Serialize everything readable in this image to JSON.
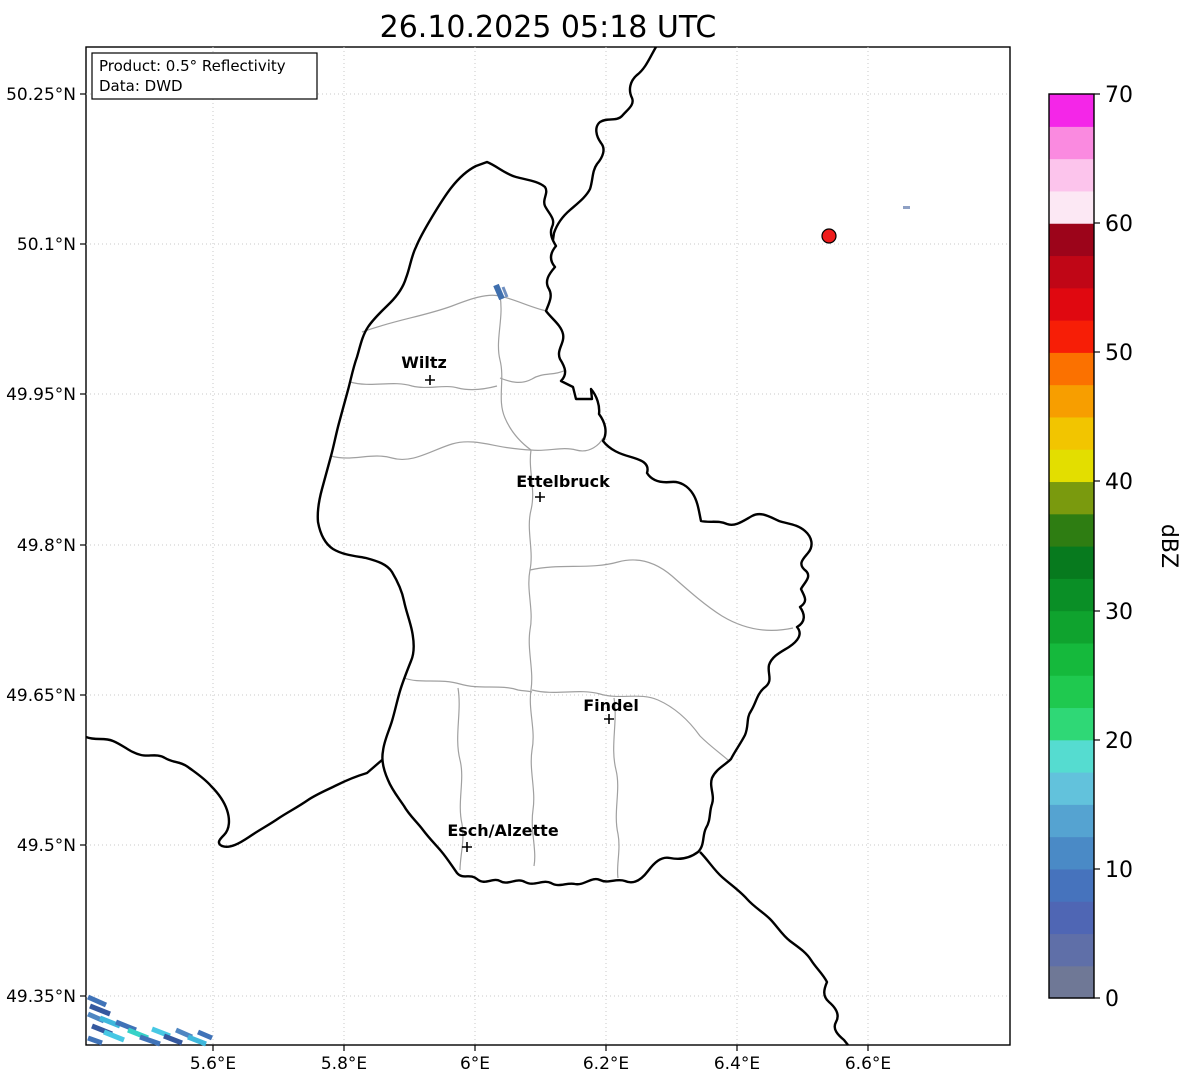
{
  "title": "26.10.2025 05:18 UTC",
  "info_box": {
    "product": "Product: 0.5° Reflectivity",
    "data_source": "Data: DWD"
  },
  "axes": {
    "x_ticks": [
      "5.6°E",
      "5.8°E",
      "6°E",
      "6.2°E",
      "6.4°E",
      "6.6°E"
    ],
    "y_ticks": [
      "50.25°N",
      "50.1°N",
      "49.95°N",
      "49.8°N",
      "49.65°N",
      "49.5°N",
      "49.35°N"
    ]
  },
  "map": {
    "cities": [
      {
        "name": "Wiltz"
      },
      {
        "name": "Ettelbruck"
      },
      {
        "name": "Findel"
      },
      {
        "name": "Esch/Alzette"
      }
    ],
    "radar_site_color": "#ee1c1c"
  },
  "colorbar": {
    "label": "dBZ",
    "min": 0,
    "max": 70,
    "ticks": [
      "0",
      "10",
      "20",
      "30",
      "40",
      "50",
      "60",
      "70"
    ],
    "segments": [
      "#6f7896",
      "#5f6fa8",
      "#4f66b4",
      "#4673bd",
      "#4a8ac6",
      "#55a3d1",
      "#62c2dc",
      "#55dcd0",
      "#2fd876",
      "#1fc94f",
      "#15b93c",
      "#0fa32e",
      "#0a8f26",
      "#077a1e",
      "#2e7d12",
      "#7a9a0e",
      "#e3de00",
      "#f2c500",
      "#f79e00",
      "#fb7100",
      "#f71e06",
      "#e00810",
      "#c00616",
      "#9c041a",
      "#fce8f4",
      "#fcc4ec",
      "#fa8ae0",
      "#f426e8"
    ]
  }
}
